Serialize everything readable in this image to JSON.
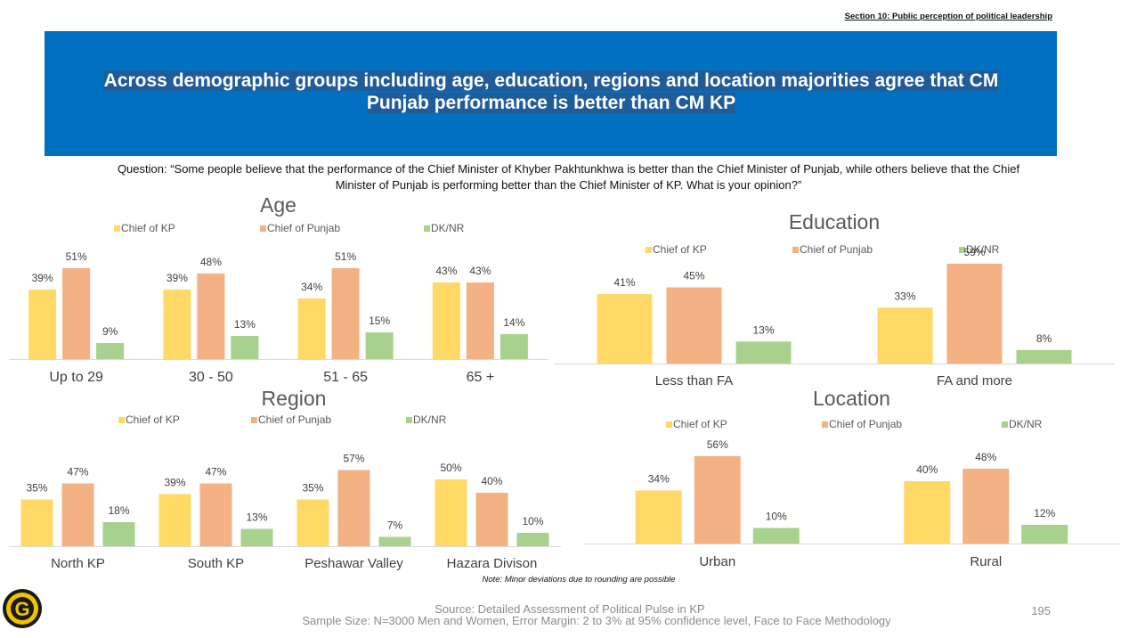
{
  "header": {
    "section_label": "Section 10: Public perception of political leadership",
    "banner_title": "Across demographic groups including age, education, regions and location majorities agree that CM Punjab performance is better than CM KP",
    "question": "Question: “Some people believe that the performance of the Chief Minister of Khyber Pakhtunkhwa is better than the Chief Minister of Punjab, while others believe that the Chief Minister of Punjab is performing better than the Chief Minister of KP. What is your opinion?”"
  },
  "colors": {
    "chief_of_kp": "#FFD966",
    "chief_of_punjab": "#F4B183",
    "dk_nr": "#A9D18E",
    "banner": "#0070C0"
  },
  "chart_data": [
    {
      "type": "bar",
      "title": "Age",
      "categories": [
        "Up to 29",
        "30 - 50",
        "51 - 65",
        "65 +"
      ],
      "series": [
        {
          "name": "Chief of KP",
          "values": [
            39,
            39,
            34,
            43
          ],
          "labels": [
            "39%",
            "39%",
            "34%",
            "43%"
          ]
        },
        {
          "name": "Chief of Punjab",
          "values": [
            51,
            48,
            51,
            43
          ],
          "labels": [
            "51%",
            "48%",
            "51%",
            "43%"
          ]
        },
        {
          "name": "DK/NR",
          "values": [
            9,
            13,
            15,
            14
          ],
          "labels": [
            "9%",
            "13%",
            "15%",
            "14%"
          ]
        }
      ],
      "legend": "top",
      "grid": false
    },
    {
      "type": "bar",
      "title": "Education",
      "categories": [
        "Less than FA",
        "FA and more"
      ],
      "series": [
        {
          "name": "Chief of KP",
          "values": [
            41,
            33
          ],
          "labels": [
            "41%",
            "33%"
          ]
        },
        {
          "name": "Chief of Punjab",
          "values": [
            45,
            59
          ],
          "labels": [
            "45%",
            "59%"
          ]
        },
        {
          "name": "DK/NR",
          "values": [
            13,
            8
          ],
          "labels": [
            "13%",
            "8%"
          ]
        }
      ],
      "legend": "top",
      "grid": false
    },
    {
      "type": "bar",
      "title": "Region",
      "categories": [
        "North KP",
        "South KP",
        "Peshawar Valley",
        "Hazara Divison"
      ],
      "series": [
        {
          "name": "Chief of KP",
          "values": [
            35,
            39,
            35,
            50
          ],
          "labels": [
            "35%",
            "39%",
            "35%",
            "50%"
          ]
        },
        {
          "name": "Chief of Punjab",
          "values": [
            47,
            47,
            57,
            40
          ],
          "labels": [
            "47%",
            "47%",
            "57%",
            "40%"
          ]
        },
        {
          "name": "DK/NR",
          "values": [
            18,
            13,
            7,
            10
          ],
          "labels": [
            "18%",
            "13%",
            "7%",
            "10%"
          ]
        }
      ],
      "legend": "top",
      "grid": false
    },
    {
      "type": "bar",
      "title": "Location",
      "categories": [
        "Urban",
        "Rural"
      ],
      "series": [
        {
          "name": "Chief of KP",
          "values": [
            34,
            40
          ],
          "labels": [
            "34%",
            "40%"
          ]
        },
        {
          "name": "Chief of Punjab",
          "values": [
            56,
            48
          ],
          "labels": [
            "56%",
            "48%"
          ]
        },
        {
          "name": "DK/NR",
          "values": [
            10,
            12
          ],
          "labels": [
            "10%",
            "12%"
          ]
        }
      ],
      "legend": "top",
      "grid": false
    }
  ],
  "footer": {
    "note": "Note: Minor deviations due to rounding are possible",
    "source": "Source: Detailed Assessment of Political Pulse in KP",
    "sample": "Sample Size: N=3000 Men and Women, Error Margin: 2 to 3% at 95% confidence level, Face to Face Methodology",
    "page_number": "195",
    "logo_letter": "G"
  }
}
